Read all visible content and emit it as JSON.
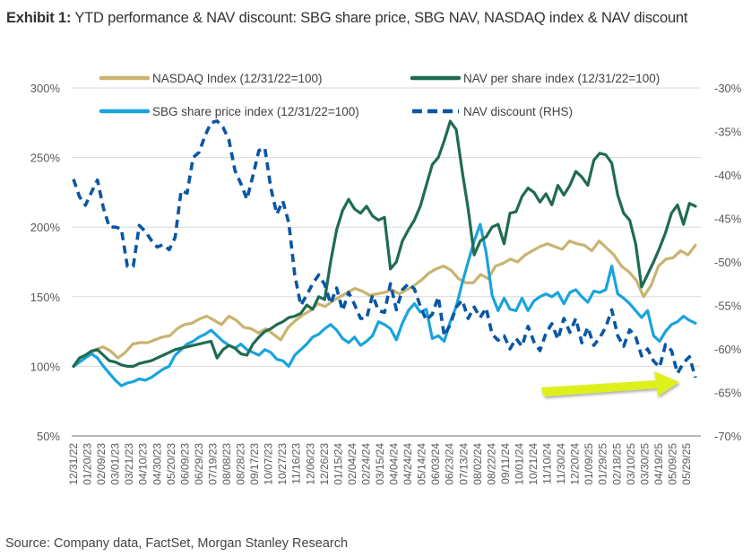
{
  "header": {
    "title_bold": "Exhibit 1:",
    "title_rest": " YTD performance & NAV discount: SBG share price, SBG NAV, NASDAQ index & NAV discount"
  },
  "footer": {
    "source": "Source: Company data, FactSet, Morgan Stanley Research"
  },
  "chart_data": {
    "type": "line",
    "title": "YTD performance & NAV discount: SBG share price, SBG NAV, NASDAQ index & NAV discount",
    "xlabel": "",
    "ylabel": "",
    "grid": true,
    "legend_position": "top",
    "y_left": {
      "min": 50,
      "max": 300,
      "ticks": [
        50,
        100,
        150,
        200,
        250,
        300
      ],
      "tick_labels": [
        "50%",
        "100%",
        "150%",
        "200%",
        "250%",
        "300%"
      ]
    },
    "y_right": {
      "min": -70,
      "max": -30,
      "ticks": [
        -70,
        -65,
        -60,
        -55,
        -50,
        -45,
        -40,
        -35,
        -30
      ],
      "tick_labels": [
        "-70%",
        "-65%",
        "-60%",
        "-55%",
        "-50%",
        "-45%",
        "-40%",
        "-35%",
        "-30%"
      ]
    },
    "x_tick_labels": [
      "12/31/22",
      "01/20/23",
      "02/09/23",
      "03/01/23",
      "03/21/23",
      "04/10/23",
      "04/30/23",
      "05/20/23",
      "06/09/23",
      "06/29/23",
      "07/19/23",
      "08/08/23",
      "08/28/23",
      "09/17/23",
      "10/07/23",
      "10/27/23",
      "11/16/23",
      "12/06/23",
      "12/26/23",
      "01/15/24",
      "02/04/24",
      "02/24/24",
      "03/15/24",
      "04/04/24",
      "04/24/24",
      "05/14/24",
      "06/03/24",
      "06/23/24",
      "07/13/24",
      "08/02/24",
      "08/22/24",
      "09/11/24",
      "10/01/24",
      "10/21/24",
      "11/10/24",
      "11/30/24",
      "12/20/24",
      "01/09/25",
      "01/29/25",
      "02/18/25",
      "03/10/25",
      "03/30/25",
      "04/19/25",
      "05/09/25",
      "05/29/25"
    ],
    "series": [
      {
        "name": "NASDAQ Index (12/31/22=100)",
        "axis": "left",
        "color": "#C9B36F",
        "style": "solid",
        "values": [
          100,
          104,
          108,
          112,
          114,
          111,
          106,
          110,
          116,
          117,
          117,
          119,
          121,
          122,
          127,
          130,
          131,
          134,
          136,
          133,
          130,
          136,
          133,
          128,
          127,
          124,
          127,
          123,
          119,
          128,
          133,
          137,
          140,
          145,
          143,
          147,
          150,
          153,
          156,
          154,
          151,
          152,
          153,
          155,
          152,
          155,
          158,
          162,
          167,
          170,
          172,
          169,
          163,
          160,
          160,
          166,
          163,
          172,
          174,
          177,
          175,
          180,
          183,
          186,
          188,
          186,
          184,
          190,
          188,
          187,
          183,
          190,
          185,
          180,
          172,
          168,
          162,
          150,
          158,
          172,
          177,
          178,
          183,
          180,
          187
        ]
      },
      {
        "name": "SBG share price index (12/31/22=100)",
        "axis": "left",
        "color": "#1AA3DD",
        "style": "solid",
        "values": [
          100,
          103,
          106,
          109,
          106,
          100,
          95,
          90,
          86,
          88,
          89,
          91,
          90,
          92,
          95,
          98,
          100,
          108,
          112,
          116,
          118,
          121,
          123,
          126,
          122,
          118,
          115,
          113,
          116,
          112,
          110,
          108,
          112,
          110,
          105,
          104,
          100,
          108,
          112,
          116,
          121,
          123,
          127,
          130,
          126,
          120,
          117,
          121,
          115,
          118,
          122,
          132,
          130,
          127,
          119,
          131,
          140,
          145,
          139,
          141,
          120,
          122,
          118,
          132,
          143,
          160,
          175,
          190,
          202,
          182,
          151,
          140,
          149,
          141,
          140,
          149,
          140,
          147,
          150,
          152,
          150,
          153,
          145,
          153,
          155,
          150,
          146,
          154,
          153,
          155,
          172,
          152,
          149,
          145,
          140,
          135,
          140,
          122,
          118,
          125,
          130,
          132,
          136,
          133,
          131
        ]
      },
      {
        "name": "NAV per share index (12/31/22=100)",
        "axis": "left",
        "color": "#1F6B52",
        "style": "solid",
        "values": [
          100,
          106,
          108,
          111,
          112,
          108,
          104,
          103,
          101,
          100,
          100,
          102,
          103,
          104,
          106,
          108,
          110,
          112,
          113,
          114,
          115,
          116,
          117,
          118,
          106,
          112,
          115,
          113,
          109,
          108,
          116,
          121,
          125,
          127,
          130,
          132,
          135,
          136,
          138,
          144,
          141,
          150,
          148,
          175,
          198,
          212,
          220,
          213,
          210,
          215,
          208,
          205,
          207,
          170,
          175,
          190,
          198,
          205,
          215,
          230,
          245,
          250,
          262,
          276,
          270,
          240,
          213,
          180,
          190,
          193,
          200,
          202,
          188,
          210,
          211,
          222,
          228,
          225,
          218,
          224,
          216,
          230,
          223,
          230,
          240,
          236,
          230,
          248,
          253,
          252,
          246,
          223,
          210,
          205,
          188,
          157,
          166,
          175,
          185,
          196,
          210,
          216,
          202,
          217,
          215
        ]
      },
      {
        "name": "NAV discount (RHS)",
        "axis": "right",
        "color": "#0A56A3",
        "style": "dashed",
        "values": [
          -40.5,
          -42.5,
          -43.5,
          -42,
          -40.6,
          -43.8,
          -46,
          -46,
          -46.2,
          -50.5,
          -50.5,
          -45.8,
          -46.5,
          -47.5,
          -48.3,
          -48,
          -48.6,
          -47.2,
          -41.8,
          -42.1,
          -38,
          -37.4,
          -35.5,
          -34,
          -33.8,
          -34.5,
          -36,
          -39.5,
          -41,
          -42.8,
          -40.1,
          -37.2,
          -36.9,
          -41.5,
          -44.5,
          -43,
          -45.5,
          -51.5,
          -55,
          -53.8,
          -52.5,
          -51.5,
          -52.6,
          -54.8,
          -53,
          -55.6,
          -53.5,
          -54.9,
          -56.5,
          -56.5,
          -53.8,
          -55.6,
          -55.8,
          -52.5,
          -55.5,
          -53.2,
          -52.5,
          -53.1,
          -55.1,
          -56.7,
          -56,
          -54,
          -58.5,
          -57.2,
          -55.2,
          -54.4,
          -56.5,
          -55.2,
          -56.4,
          -55.3,
          -58.3,
          -59,
          -58.5,
          -60,
          -58.8,
          -59.7,
          -57.4,
          -59.2,
          -60.2,
          -58.2,
          -57.1,
          -58.9,
          -56.5,
          -58.1,
          -56.5,
          -59.3,
          -57.5,
          -59.6,
          -58.7,
          -57.5,
          -55.5,
          -58.5,
          -59.7,
          -57.8,
          -58.6,
          -60.8,
          -60,
          -61.4,
          -62.1,
          -59.5,
          -60.2,
          -62.8,
          -61.6,
          -60.9,
          -63.3
        ]
      }
    ],
    "annotations": [
      {
        "type": "arrow",
        "color": "#DDF01E",
        "description": "Yellow-green arrow pointing right toward the latest NAV discount readings"
      }
    ]
  }
}
